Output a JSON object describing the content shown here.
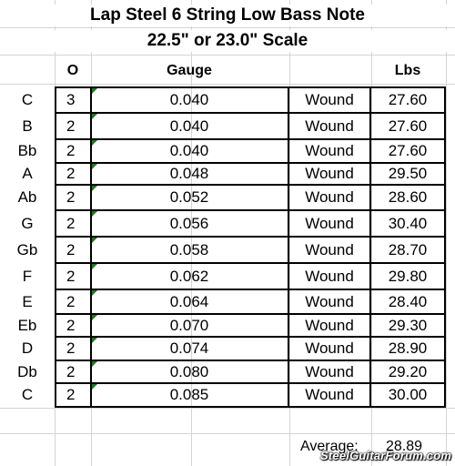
{
  "title_line1": "Lap Steel 6 String Low Bass Note",
  "title_line2": "22.5\" or 23.0\" Scale",
  "headers": {
    "o": "O",
    "gauge": "Gauge",
    "lbs": "Lbs"
  },
  "rows": [
    {
      "note": "C",
      "o": "3",
      "gauge": "0.040",
      "type": "Wound",
      "lbs": "27.60"
    },
    {
      "note": "B",
      "o": "2",
      "gauge": "0.040",
      "type": "Wound",
      "lbs": "27.60"
    },
    {
      "note": "Bb",
      "o": "2",
      "gauge": "0.040",
      "type": "Wound",
      "lbs": "27.60"
    },
    {
      "note": "A",
      "o": "2",
      "gauge": "0.048",
      "type": "Wound",
      "lbs": "29.50"
    },
    {
      "note": "Ab",
      "o": "2",
      "gauge": "0.052",
      "type": "Wound",
      "lbs": "28.60"
    },
    {
      "note": "G",
      "o": "2",
      "gauge": "0.056",
      "type": "Wound",
      "lbs": "30.40"
    },
    {
      "note": "Gb",
      "o": "2",
      "gauge": "0.058",
      "type": "Wound",
      "lbs": "28.70"
    },
    {
      "note": "F",
      "o": "2",
      "gauge": "0.062",
      "type": "Wound",
      "lbs": "29.80"
    },
    {
      "note": "E",
      "o": "2",
      "gauge": "0.064",
      "type": "Wound",
      "lbs": "28.40"
    },
    {
      "note": "Eb",
      "o": "2",
      "gauge": "0.070",
      "type": "Wound",
      "lbs": "29.30"
    },
    {
      "note": "D",
      "o": "2",
      "gauge": "0.074",
      "type": "Wound",
      "lbs": "28.90"
    },
    {
      "note": "Db",
      "o": "2",
      "gauge": "0.080",
      "type": "Wound",
      "lbs": "29.20"
    },
    {
      "note": "C",
      "o": "2",
      "gauge": "0.085",
      "type": "Wound",
      "lbs": "30.00"
    }
  ],
  "average": {
    "label": "Average:",
    "value": "28.89"
  },
  "watermark": "SteelGuitarForum.com",
  "colors": {
    "gridline": "#d4d4d4",
    "table_border": "#000000",
    "comment_indicator": "#1e7b1e"
  }
}
